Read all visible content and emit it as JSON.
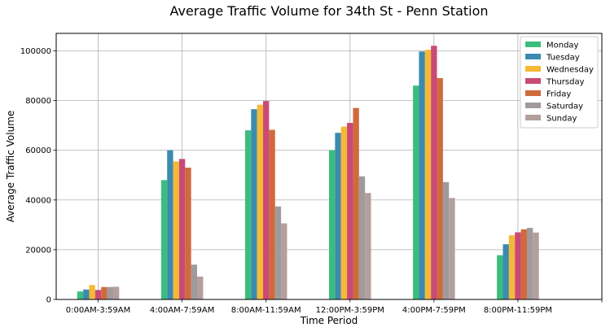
{
  "chart_data": {
    "type": "bar",
    "title": "Average Traffic Volume for 34th St - Penn Station",
    "xlabel": "Time Period",
    "ylabel": "Average Traffic Volume",
    "categories": [
      "0:00AM-3:59AM",
      "4:00AM-7:59AM",
      "8:00AM-11:59AM",
      "12:00PM-3:59PM",
      "4:00PM-7:59PM",
      "8:00PM-11:59PM"
    ],
    "ylim": [
      0,
      107000
    ],
    "yticks": [
      0,
      20000,
      40000,
      60000,
      80000,
      100000
    ],
    "grid": true,
    "legend_position": "top-right",
    "series": [
      {
        "name": "Monday",
        "color": "#3dbd7d",
        "values": [
          3200,
          48000,
          68000,
          60000,
          86000,
          17800
        ]
      },
      {
        "name": "Tuesday",
        "color": "#3b8bb0",
        "values": [
          4000,
          60000,
          76500,
          67000,
          99700,
          22200
        ]
      },
      {
        "name": "Wednesday",
        "color": "#f5b935",
        "values": [
          5800,
          55500,
          78300,
          69500,
          100400,
          25800
        ]
      },
      {
        "name": "Thursday",
        "color": "#c94a78",
        "values": [
          3800,
          56500,
          79800,
          71000,
          102000,
          27000
        ]
      },
      {
        "name": "Friday",
        "color": "#d06a3c",
        "values": [
          5000,
          53000,
          68200,
          77000,
          89000,
          28200
        ]
      },
      {
        "name": "Saturday",
        "color": "#a09a9c",
        "values": [
          5000,
          14000,
          37400,
          49500,
          47200,
          28800
        ]
      },
      {
        "name": "Sunday",
        "color": "#b39f9c",
        "values": [
          5100,
          9200,
          30600,
          42800,
          40800,
          26900
        ]
      }
    ]
  }
}
